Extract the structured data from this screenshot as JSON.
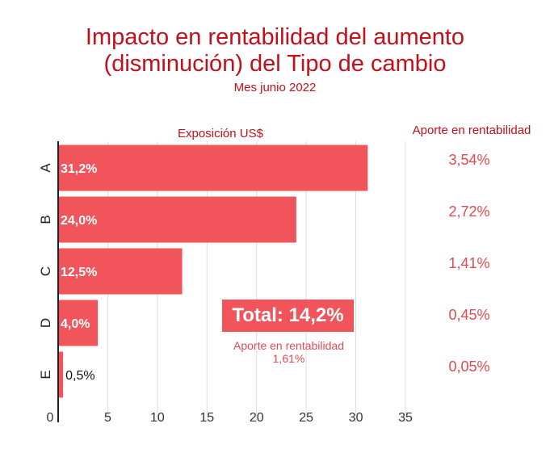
{
  "title_line1": "Impacto en rentabilidad del aumento",
  "title_line2": "(disminución) del Tipo de cambio",
  "subtitle": "Mes junio 2022",
  "total": {
    "label": "Total: 14,2%",
    "note_label": "Aporte en rentabilidad",
    "note_value": "1,61%"
  },
  "colors": {
    "title": "#c0101a",
    "bar": "#f2545b",
    "aporte_text": "#e04a52",
    "header": "#c0101a"
  },
  "chart_data": {
    "type": "bar",
    "orientation": "horizontal",
    "xlabel": "Exposición US$",
    "right_header": "Aporte en rentabilidad",
    "categories": [
      "A",
      "B",
      "C",
      "D",
      "E"
    ],
    "values": [
      31.2,
      24.0,
      12.5,
      4.0,
      0.5
    ],
    "value_labels": [
      "31,2%",
      "24,0%",
      "12,5%",
      "4,0%",
      "0,5%"
    ],
    "aporte": [
      "3,54%",
      "2,72%",
      "1,41%",
      "0,45%",
      "0,05%"
    ],
    "xlim": [
      0,
      35
    ],
    "xticks": [
      0,
      5,
      10,
      15,
      20,
      25,
      30,
      35
    ],
    "grid": true
  }
}
